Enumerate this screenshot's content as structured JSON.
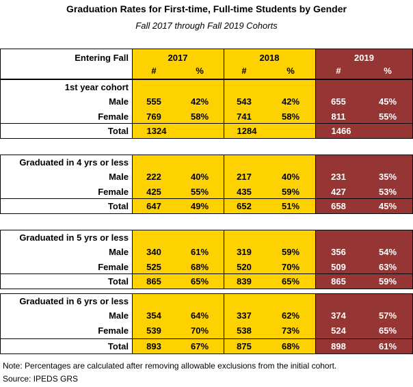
{
  "title": "Graduation Rates for First-time, Full-time Students by Gender",
  "subtitle": "Fall 2017 through Fall 2019 Cohorts",
  "header": {
    "row_label": "Entering Fall",
    "years": [
      "2017",
      "2018",
      "2019"
    ],
    "num_label": "#",
    "pct_label": "%"
  },
  "colors": {
    "yellow": "#FDD200",
    "red": "#963634"
  },
  "sections": [
    {
      "title": "1st year cohort",
      "rows": [
        {
          "label": "Male",
          "cells": [
            "555",
            "42%",
            "543",
            "42%",
            "655",
            "45%"
          ]
        },
        {
          "label": "Female",
          "cells": [
            "769",
            "58%",
            "741",
            "58%",
            "811",
            "55%"
          ]
        }
      ],
      "total": {
        "label": "Total",
        "cells": [
          "1324",
          "",
          "1284",
          "",
          "1466",
          ""
        ]
      }
    },
    {
      "title": "Graduated in 4 yrs or less",
      "rows": [
        {
          "label": "Male",
          "cells": [
            "222",
            "40%",
            "217",
            "40%",
            "231",
            "35%"
          ]
        },
        {
          "label": "Female",
          "cells": [
            "425",
            "55%",
            "435",
            "59%",
            "427",
            "53%"
          ]
        }
      ],
      "total": {
        "label": "Total",
        "cells": [
          "647",
          "49%",
          "652",
          "51%",
          "658",
          "45%"
        ]
      }
    },
    {
      "title": "Graduated in 5 yrs or less",
      "rows": [
        {
          "label": "Male",
          "cells": [
            "340",
            "61%",
            "319",
            "59%",
            "356",
            "54%"
          ]
        },
        {
          "label": "Female",
          "cells": [
            "525",
            "68%",
            "520",
            "70%",
            "509",
            "63%"
          ]
        }
      ],
      "total": {
        "label": "Total",
        "cells": [
          "865",
          "65%",
          "839",
          "65%",
          "865",
          "59%"
        ]
      }
    },
    {
      "title": "Graduated in 6 yrs or less",
      "rows": [
        {
          "label": "Male",
          "cells": [
            "354",
            "64%",
            "337",
            "62%",
            "374",
            "57%"
          ]
        },
        {
          "label": "Female",
          "cells": [
            "539",
            "70%",
            "538",
            "73%",
            "524",
            "65%"
          ]
        }
      ],
      "total": {
        "label": "Total",
        "cells": [
          "893",
          "67%",
          "875",
          "68%",
          "898",
          "61%"
        ]
      }
    }
  ],
  "footnote": "Note: Percentages are calculated after removing allowable exclusions from the initial cohort.",
  "source": "Source: IPEDS GRS"
}
